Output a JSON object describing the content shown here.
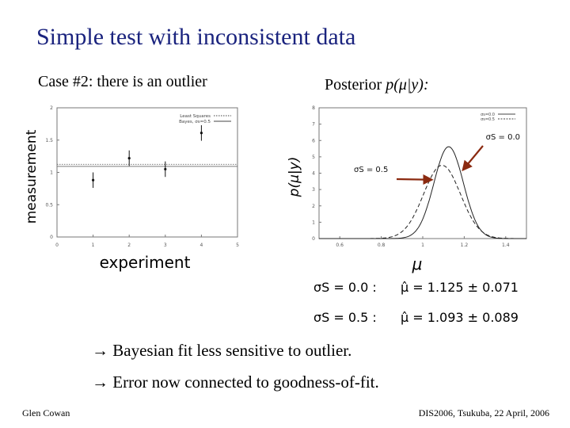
{
  "slide": {
    "title": "Simple test with inconsistent data",
    "case_label": "Case #2: there is an outlier",
    "posterior_label_pre": "Posterior ",
    "posterior_label_math": "p(μ|y):",
    "bullets": [
      "→ Bayesian fit less sensitive to outlier.",
      "→ Error now connected to goodness-of-fit."
    ],
    "results": [
      {
        "sigma": "σS = 0.0 :",
        "mu": "μ̂ = 1.125 ± 0.071"
      },
      {
        "sigma": "σS = 0.5 :",
        "mu": "μ̂ = 1.093 ± 0.089"
      }
    ],
    "footer_left": "Glen Cowan",
    "footer_right": "DIS2006, Tsukuba, 22 April, 2006"
  },
  "chart_data": [
    {
      "type": "scatter",
      "title": "",
      "xlabel": "experiment",
      "ylabel": "measurement",
      "xlim": [
        0,
        5
      ],
      "ylim": [
        0,
        2
      ],
      "x_ticks": [
        "0",
        "1",
        "2",
        "3",
        "4",
        "5"
      ],
      "y_ticks": [
        "0",
        "0.5",
        "1",
        "1.5",
        "2"
      ],
      "legend": {
        "placement": "top-right",
        "entries": [
          "Least Squares",
          "Bayes, σs=0.5"
        ]
      },
      "points": [
        {
          "x": 1,
          "y": 0.88,
          "err": 0.12
        },
        {
          "x": 2,
          "y": 1.22,
          "err": 0.12
        },
        {
          "x": 3,
          "y": 1.05,
          "err": 0.12
        },
        {
          "x": 4,
          "y": 1.61,
          "err": 0.12
        }
      ],
      "fit_lines": [
        {
          "name": "Least Squares",
          "y": 1.125,
          "style": "dotted"
        },
        {
          "name": "Bayes, σs=0.5",
          "y": 1.093,
          "style": "solid"
        }
      ]
    },
    {
      "type": "line",
      "title": "",
      "xlabel": "μ",
      "ylabel": "p(μ|y)",
      "xlim": [
        0.5,
        1.5
      ],
      "ylim": [
        0,
        8
      ],
      "x_ticks": [
        "0.6",
        "0.8",
        "1",
        "1.2",
        "1.4"
      ],
      "y_ticks": [
        "0",
        "1",
        "2",
        "3",
        "4",
        "5",
        "6",
        "7",
        "8"
      ],
      "legend": {
        "placement": "top-right",
        "entries": [
          "σs=0.0",
          "σs=0.5"
        ]
      },
      "annotations": [
        "σS = 0.0",
        "σS = 0.5"
      ],
      "series": [
        {
          "name": "σs=0.0",
          "style": "solid",
          "mean": 1.125,
          "sigma": 0.071
        },
        {
          "name": "σs=0.5",
          "style": "dashed",
          "mean": 1.093,
          "sigma": 0.089
        }
      ]
    }
  ]
}
